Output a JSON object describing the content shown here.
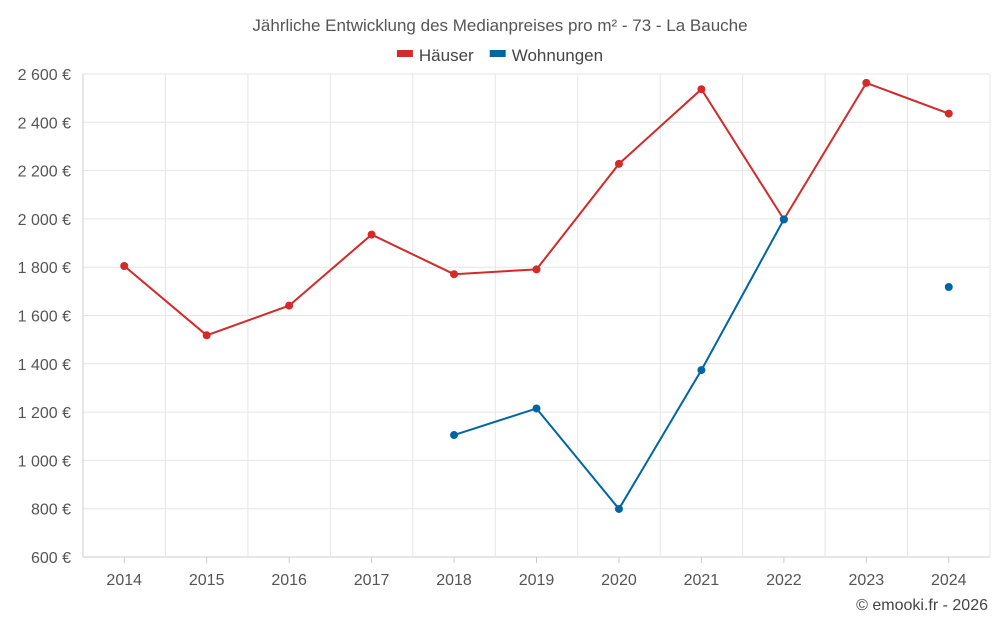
{
  "chart_data": {
    "type": "line",
    "title": "Jährliche Entwicklung des Medianpreises pro m² - 73 - La Bauche",
    "categories": [
      "2014",
      "2015",
      "2016",
      "2017",
      "2018",
      "2019",
      "2020",
      "2021",
      "2022",
      "2023",
      "2024"
    ],
    "series": [
      {
        "name": "Häuser",
        "color": "#d32a2a",
        "values": [
          1805,
          1518,
          1641,
          1935,
          1771,
          1791,
          2228,
          2537,
          1998,
          2563,
          2436
        ]
      },
      {
        "name": "Wohnungen",
        "color": "#0066a1",
        "values": [
          null,
          null,
          null,
          null,
          1105,
          1215,
          799,
          1374,
          1998,
          null,
          1718
        ]
      }
    ],
    "ylim": [
      600,
      2600
    ],
    "yticks": [
      600,
      800,
      1000,
      1200,
      1400,
      1600,
      1800,
      2000,
      2200,
      2400,
      2600
    ],
    "ytick_labels": [
      "600 €",
      "800 €",
      "1 000 €",
      "1 200 €",
      "1 400 €",
      "1 600 €",
      "1 800 €",
      "2 000 €",
      "2 200 €",
      "2 400 €",
      "2 600 €"
    ],
    "xlabel": "",
    "ylabel": "",
    "grid": true,
    "legend_position": "top-center"
  },
  "footer": "© emooki.fr - 2026"
}
